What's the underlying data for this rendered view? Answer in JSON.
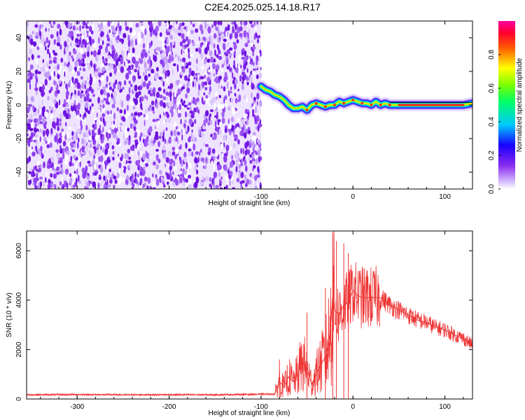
{
  "title": "C2E4.2025.025.14.18.R17",
  "chart_data": [
    {
      "type": "heatmap",
      "xlabel": "Height of straight line (km)",
      "ylabel": "Frequency (Hz)",
      "xlim": [
        -355,
        130
      ],
      "ylim": [
        -50,
        50
      ],
      "xticks": [
        -300,
        -200,
        -100,
        0,
        100
      ],
      "yticks": [
        -40,
        -20,
        0,
        20,
        40
      ],
      "colorbar": {
        "label": "Normalized spectral amplitude",
        "range": [
          0,
          1
        ],
        "ticks": [
          0.0,
          0.2,
          0.4,
          0.6,
          0.8
        ],
        "tick_labels": [
          "0.0",
          "0.2",
          "0.4",
          "0.6",
          "0.8"
        ],
        "colormap": "rainbow (white, purple, blue, cyan, green, yellow, red, magenta)"
      },
      "noise_region_x": [
        -355,
        -100
      ],
      "ridge": {
        "x": [
          -100,
          -95,
          -90,
          -85,
          -80,
          -75,
          -70,
          -65,
          -60,
          -55,
          -50,
          -45,
          -40,
          -35,
          -30,
          -25,
          -20,
          -15,
          -10,
          -5,
          0,
          5,
          10,
          15,
          20,
          25,
          30,
          35,
          40,
          50,
          60,
          70,
          80,
          90,
          100,
          110,
          120,
          130
        ],
        "freq": [
          11,
          9,
          8,
          6,
          5,
          3,
          0,
          -2,
          -2,
          -1,
          -3,
          0,
          1,
          0,
          -1,
          0,
          0,
          2,
          1,
          2,
          3,
          2,
          1,
          1,
          0,
          2,
          0,
          1,
          0,
          0,
          0,
          0,
          0,
          0,
          0,
          0,
          0,
          1
        ]
      }
    },
    {
      "type": "line",
      "xlabel": "Height of straight line (km)",
      "ylabel": "SNR (10 * v/v)",
      "xlim": [
        -355,
        130
      ],
      "ylim": [
        0,
        6800
      ],
      "xticks": [
        -300,
        -200,
        -100,
        0,
        100
      ],
      "yticks": [
        0,
        2000,
        4000,
        6000
      ],
      "line_color": "#ee3333",
      "series": [
        {
          "x": [
            -355,
            -300,
            -250,
            -200,
            -150,
            -110,
            -85,
            -80,
            -75,
            -70,
            -65,
            -60,
            -55,
            -50,
            -45,
            -40,
            -35,
            -30,
            -25,
            -22,
            -20,
            -15,
            -10,
            -5,
            0,
            5,
            10,
            20,
            30,
            40,
            50,
            60,
            70,
            80,
            90,
            100,
            110,
            120,
            130
          ],
          "y": [
            170,
            180,
            170,
            175,
            170,
            190,
            200,
            700,
            500,
            900,
            700,
            1000,
            1500,
            1200,
            600,
            1000,
            1400,
            1700,
            2600,
            4200,
            3600,
            3400,
            3800,
            3900,
            4400,
            4200,
            4100,
            4100,
            4100,
            3800,
            3600,
            3400,
            3200,
            3100,
            2900,
            2800,
            2600,
            2450,
            2200
          ]
        }
      ]
    }
  ]
}
